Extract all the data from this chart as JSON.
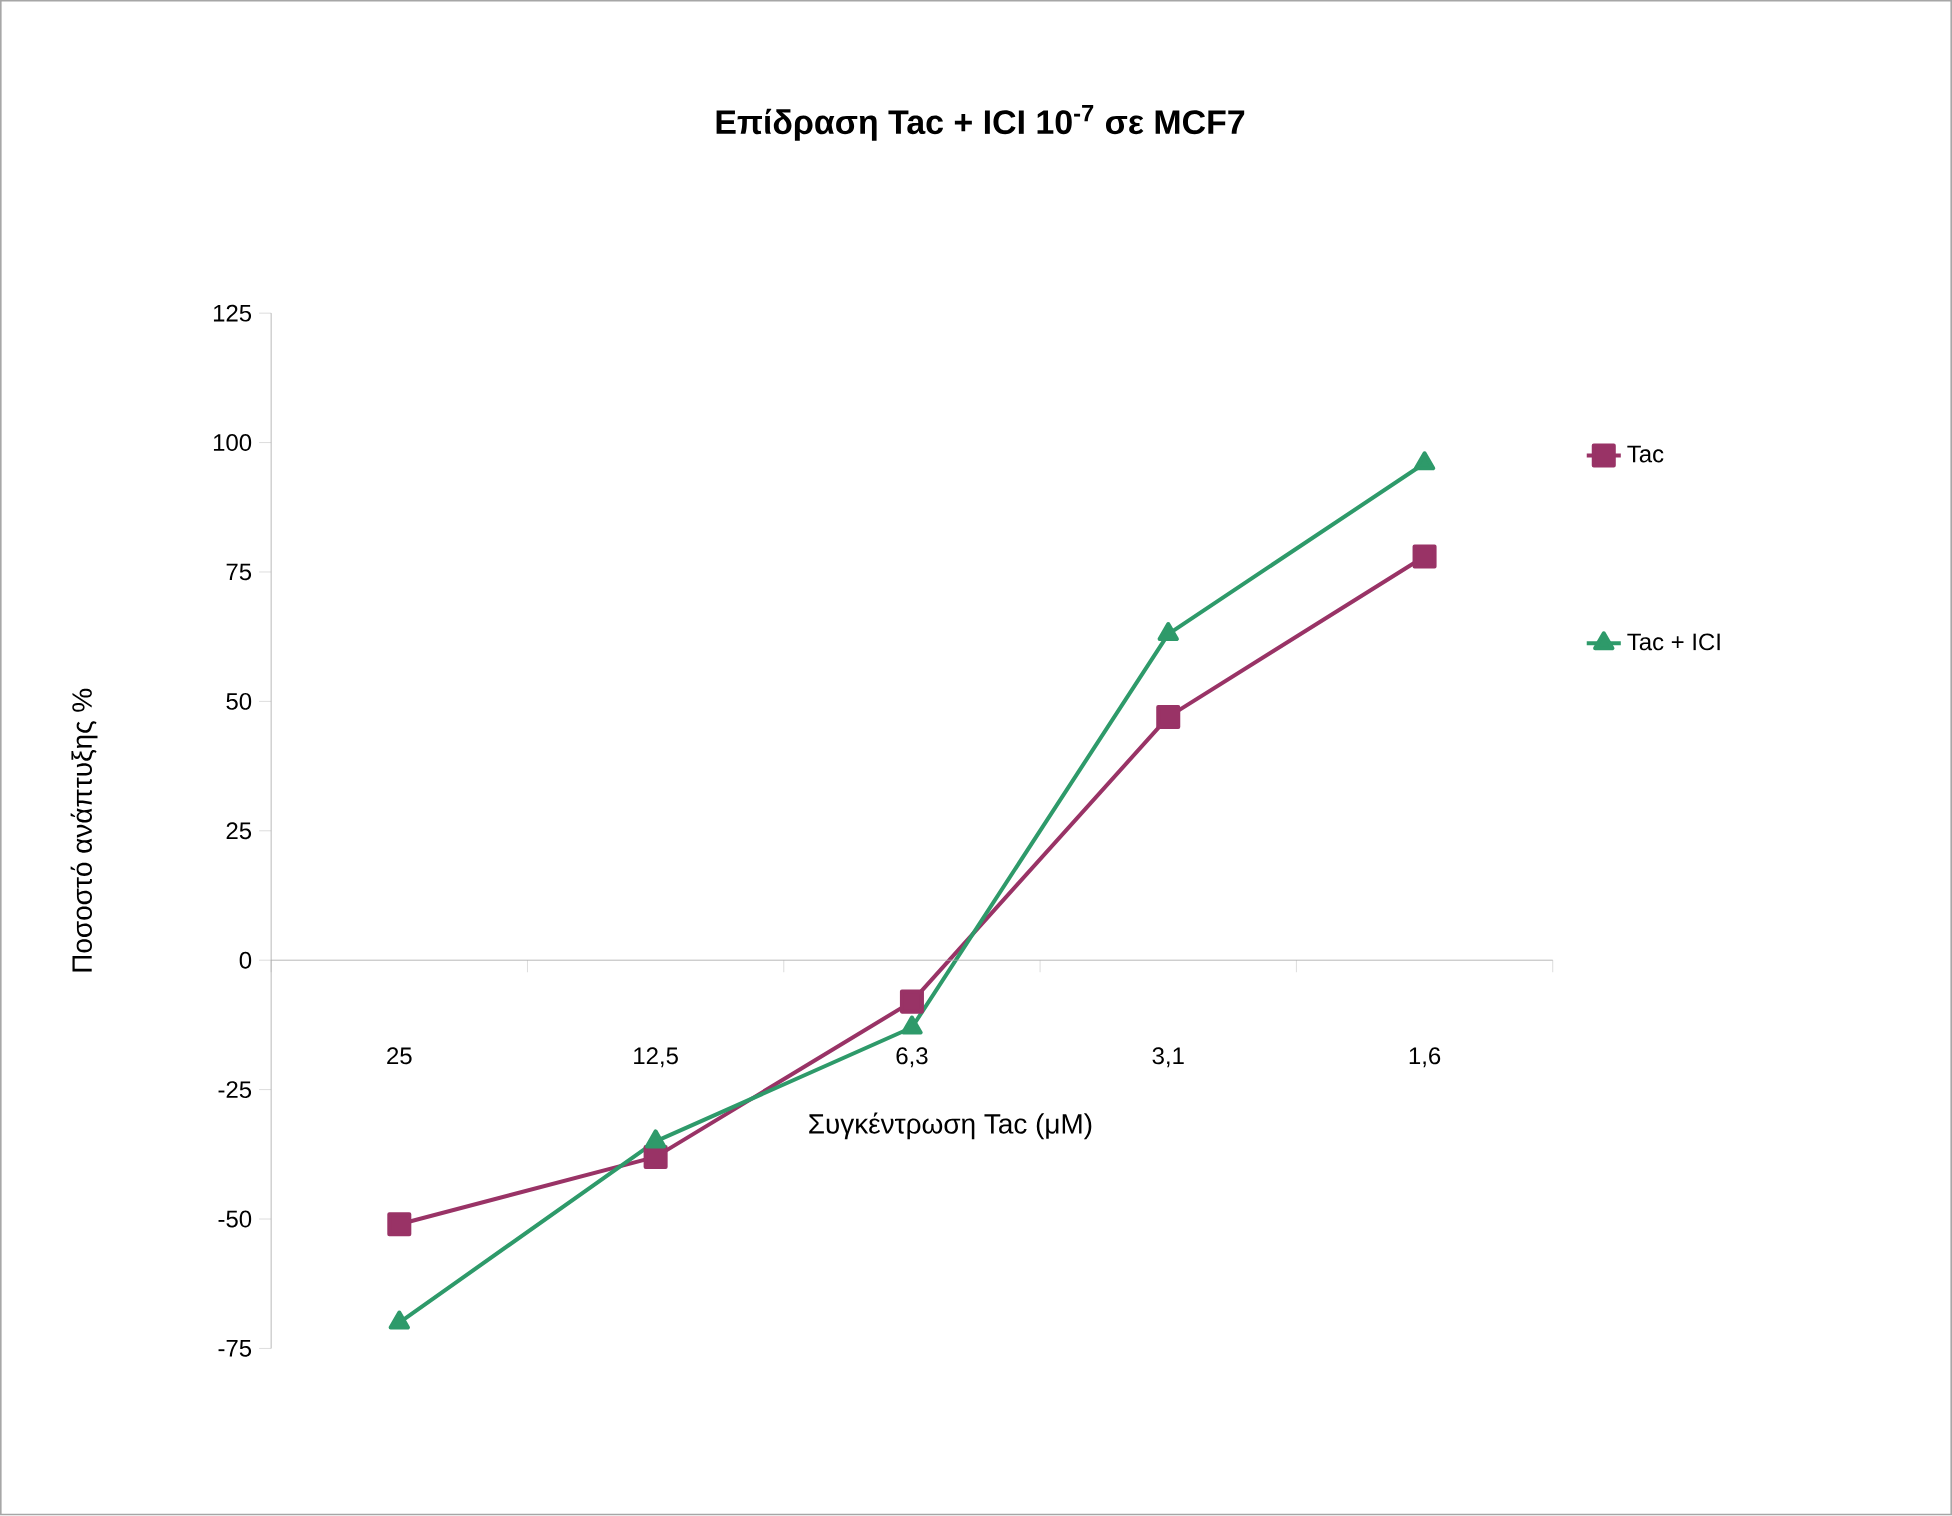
{
  "chart_data": {
    "type": "line",
    "title": "Επίδραση Tac + ICI 10$^{-7}$ σε MCF7",
    "xlabel": "Συγκέντρωση Tac (μM)",
    "ylabel": "Ποσοστό ανάπτυξης %",
    "categories": [
      "25",
      "12,5",
      "6,3",
      "3,1",
      "1,6"
    ],
    "series": [
      {
        "name": "Tac",
        "color": "#993366",
        "marker": "square",
        "values": [
          -51,
          -38,
          -8,
          47,
          78
        ]
      },
      {
        "name": "Tac + ICI",
        "color": "#2e9a6a",
        "marker": "triangle",
        "values": [
          -70,
          -35,
          -13,
          63,
          96
        ]
      }
    ],
    "ylim": [
      -75,
      125
    ],
    "yticks": [
      -75,
      -50,
      -25,
      0,
      25,
      50,
      75,
      100,
      125
    ],
    "legend": "right"
  }
}
